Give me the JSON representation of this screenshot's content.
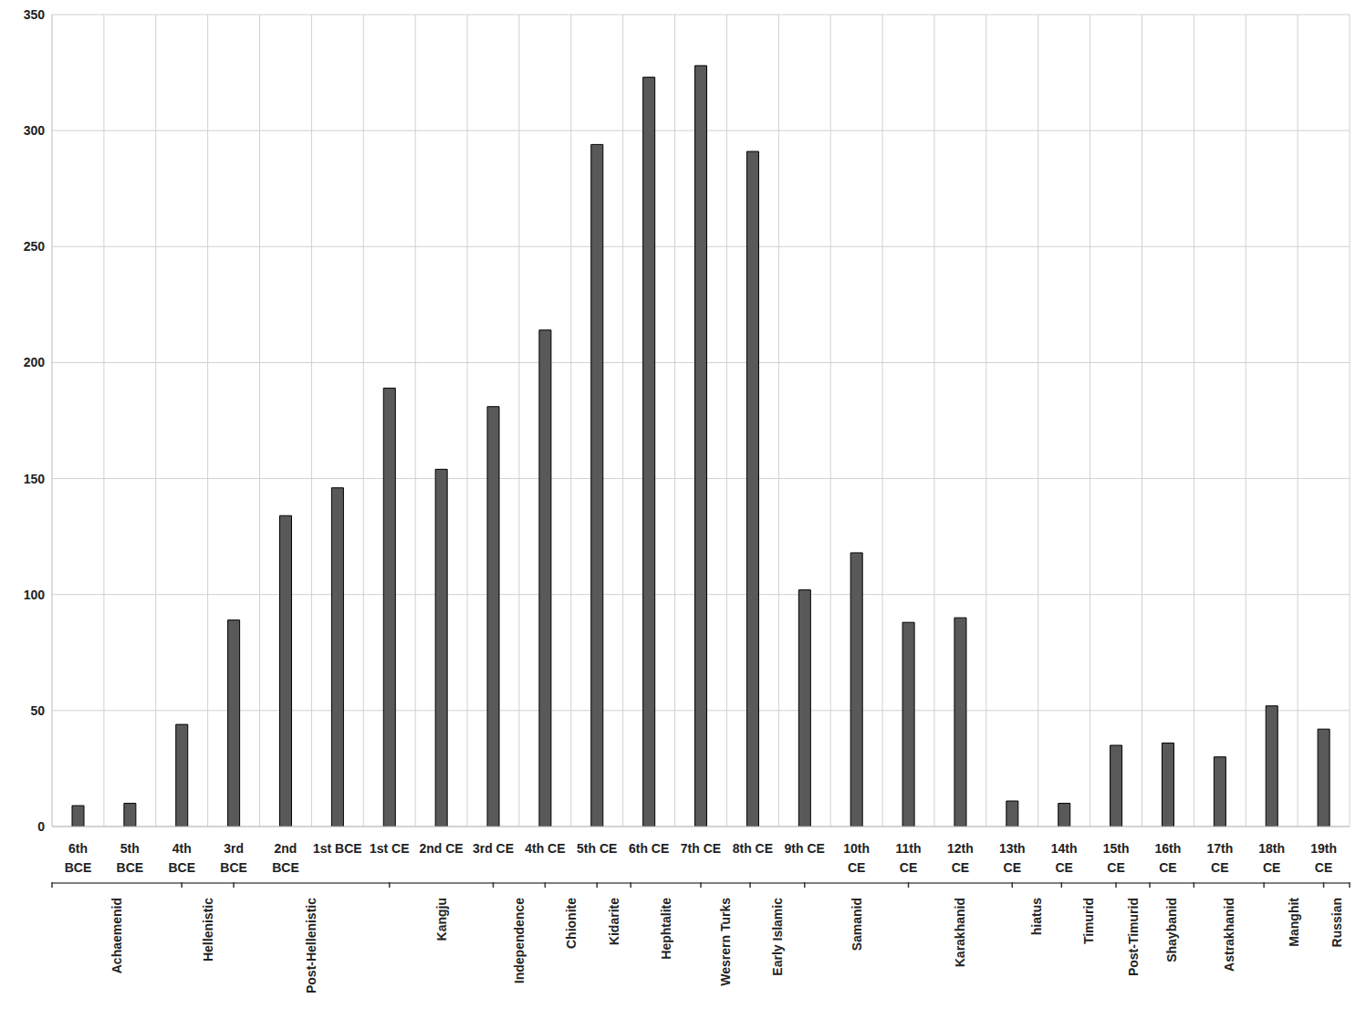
{
  "chart_data": {
    "type": "bar",
    "categories": [
      "6th\nBCE",
      "5th\nBCE",
      "4th\nBCE",
      "3rd\nBCE",
      "2nd\nBCE",
      "1st  BCE",
      "1st CE",
      "2nd CE",
      "3rd CE",
      "4th CE",
      "5th CE",
      "6th CE",
      "7th CE",
      "8th CE",
      "9th CE",
      "10th\nCE",
      "11th\nCE",
      "12th\nCE",
      "13th\nCE",
      "14th\nCE",
      "15th\nCE",
      "16th\nCE",
      "17th\nCE",
      "18th\nCE",
      "19th\nCE"
    ],
    "values": [
      9,
      10,
      44,
      89,
      134,
      146,
      189,
      154,
      181,
      214,
      294,
      323,
      328,
      291,
      102,
      118,
      88,
      90,
      11,
      10,
      35,
      36,
      30,
      52,
      42
    ],
    "color": "#595959",
    "ylim": [
      0,
      350
    ],
    "yticks": [
      0,
      50,
      100,
      150,
      200,
      250,
      300,
      350
    ],
    "grid": true,
    "annotations": [
      {
        "text": "Achaemenid",
        "from": 0,
        "to": 2.5
      },
      {
        "text": "Hellenistic",
        "from": 2.5,
        "to": 3.5
      },
      {
        "text": "Post-Hellenistic",
        "from": 3.5,
        "to": 6.5
      },
      {
        "text": "Kangju",
        "from": 6.5,
        "to": 8.5
      },
      {
        "text": "Independence",
        "from": 8.5,
        "to": 9.5
      },
      {
        "text": "Chionite",
        "from": 9.5,
        "to": 10.5
      },
      {
        "text": "Kidarite",
        "from": 10.5,
        "to": 11.15
      },
      {
        "text": "Hephtalite",
        "from": 11.15,
        "to": 12.5
      },
      {
        "text": "Wesrern Turks",
        "from": 12.5,
        "to": 13.45
      },
      {
        "text": "Early Islamic",
        "from": 13.45,
        "to": 14.5
      },
      {
        "text": "Samanid",
        "from": 14.5,
        "to": 16.5
      },
      {
        "text": "Karakhanid",
        "from": 16.5,
        "to": 18.5
      },
      {
        "text": "hiatus",
        "from": 18.5,
        "to": 19.45
      },
      {
        "text": "Timurid",
        "from": 19.45,
        "to": 20.5
      },
      {
        "text": "Post-Timurid",
        "from": 20.5,
        "to": 21.15
      },
      {
        "text": "Shaybanid",
        "from": 21.15,
        "to": 22
      },
      {
        "text": "Astrakhanid",
        "from": 22,
        "to": 23.35
      },
      {
        "text": "Manghit",
        "from": 23.35,
        "to": 24.5
      },
      {
        "text": "Russian",
        "from": 24.5,
        "to": 25
      }
    ]
  }
}
